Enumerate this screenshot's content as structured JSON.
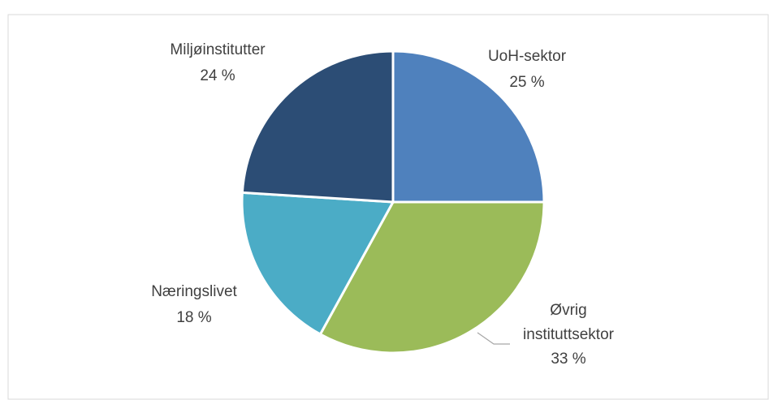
{
  "chart_data": {
    "type": "pie",
    "categories": [
      "UoH-sektor",
      "Øvrig instituttsektor",
      "Næringslivet",
      "Miljøinstitutter"
    ],
    "values": [
      25,
      33,
      18,
      24
    ],
    "value_labels": [
      "25 %",
      "33 %",
      "18 %",
      "24 %"
    ],
    "colors": [
      "#4f81bd",
      "#9bbb59",
      "#4bacc6",
      "#2c4d75"
    ]
  }
}
